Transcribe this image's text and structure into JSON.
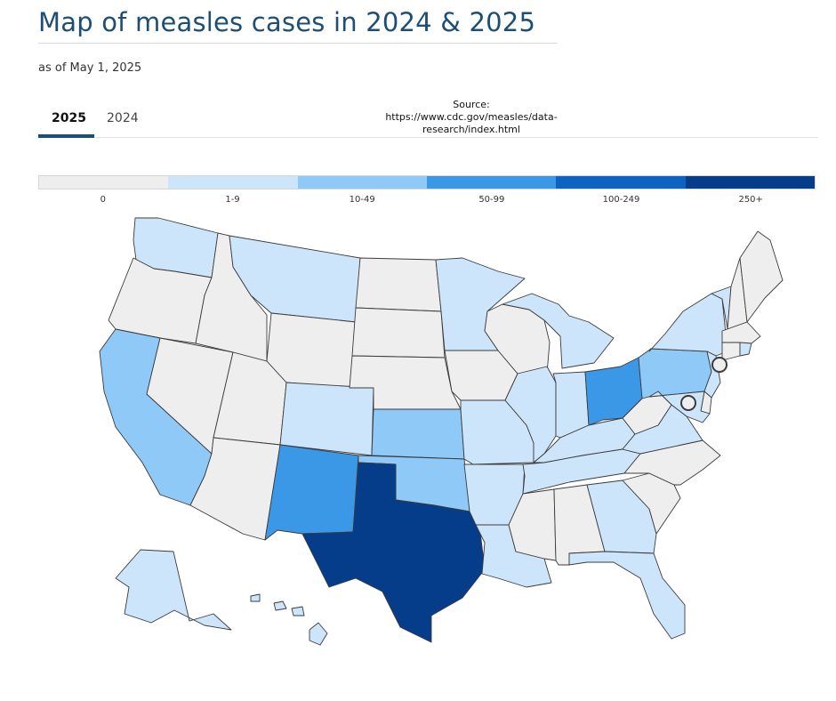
{
  "header": {
    "title": "Map of measles cases in 2024 & 2025",
    "subtitle": "as of May 1, 2025"
  },
  "tabs": [
    {
      "label": "2025",
      "active": true
    },
    {
      "label": "2024",
      "active": false
    }
  ],
  "source": {
    "label": "Source:",
    "url": "https://www.cdc.gov/measles/data-research/index.html"
  },
  "legend": [
    {
      "label": "0",
      "color": "#eeeeee"
    },
    {
      "label": "1-9",
      "color": "#cce5fb"
    },
    {
      "label": "10-49",
      "color": "#8ec9f7"
    },
    {
      "label": "50-99",
      "color": "#3a98e6"
    },
    {
      "label": "100-249",
      "color": "#0d62c2"
    },
    {
      "label": "250+",
      "color": "#053d8a"
    }
  ],
  "map_data": {
    "level_colors": {
      "0": "#eeeeee",
      "1": "#cce5fb",
      "2": "#8ec9f7",
      "3": "#3a98e6",
      "4": "#0d62c2",
      "5": "#053d8a"
    },
    "state_levels": {
      "WA": 1,
      "OR": 0,
      "CA": 2,
      "NV": 0,
      "ID": 0,
      "MT": 1,
      "WY": 0,
      "UT": 0,
      "AZ": 0,
      "CO": 1,
      "NM": 3,
      "ND": 0,
      "SD": 0,
      "NE": 0,
      "KS": 2,
      "OK": 2,
      "TX": 5,
      "MN": 1,
      "IA": 0,
      "MO": 1,
      "AR": 1,
      "LA": 1,
      "WI": 0,
      "IL": 1,
      "MI": 1,
      "IN": 1,
      "OH": 3,
      "KY": 1,
      "TN": 1,
      "MS": 0,
      "AL": 0,
      "GA": 1,
      "FL": 1,
      "SC": 0,
      "NC": 0,
      "VA": 1,
      "WV": 0,
      "PA": 2,
      "NY": 1,
      "VT": 1,
      "NH": 0,
      "ME": 0,
      "MA": 0,
      "RI": 1,
      "CT": 0,
      "NJ": 1,
      "DE": 0,
      "MD": 1,
      "AK": 1,
      "HI": 1
    },
    "markers": [
      {
        "name": "NYC",
        "level": 0
      },
      {
        "name": "DC",
        "level": 0
      }
    ]
  }
}
